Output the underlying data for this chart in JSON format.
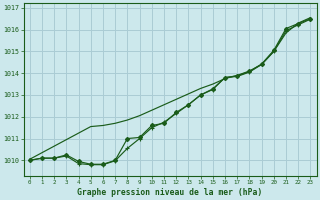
{
  "title": "Graphe pression niveau de la mer (hPa)",
  "bg_color": "#cce8ec",
  "grid_color": "#aaccd4",
  "line_color": "#1a5c1a",
  "marker_color": "#1a5c1a",
  "xlim": [
    -0.5,
    23.5
  ],
  "ylim": [
    1009.3,
    1017.2
  ],
  "xticks": [
    0,
    1,
    2,
    3,
    4,
    5,
    6,
    7,
    8,
    9,
    10,
    11,
    12,
    13,
    14,
    15,
    16,
    17,
    18,
    19,
    20,
    21,
    22,
    23
  ],
  "yticks": [
    1010,
    1011,
    1012,
    1013,
    1014,
    1015,
    1016,
    1017
  ],
  "hours": [
    0,
    1,
    2,
    3,
    4,
    5,
    6,
    7,
    8,
    9,
    10,
    11,
    12,
    13,
    14,
    15,
    16,
    17,
    18,
    19,
    20,
    21,
    22,
    23
  ],
  "line_top": [
    1010.05,
    1010.35,
    1010.65,
    1010.95,
    1011.25,
    1011.55,
    1011.6,
    1011.7,
    1011.85,
    1012.05,
    1012.3,
    1012.55,
    1012.8,
    1013.05,
    1013.3,
    1013.5,
    1013.75,
    1013.9,
    1014.1,
    1014.4,
    1015.0,
    1015.85,
    1016.3,
    1016.55
  ],
  "line_mid": [
    1010.0,
    1010.1,
    1010.1,
    1010.2,
    1009.85,
    1009.8,
    1009.8,
    1009.98,
    1010.55,
    1011.0,
    1011.5,
    1011.75,
    1012.15,
    1012.55,
    1013.0,
    1013.25,
    1013.8,
    1013.85,
    1014.05,
    1014.4,
    1015.0,
    1015.95,
    1016.22,
    1016.48
  ],
  "line_bot": [
    1010.0,
    1010.1,
    1010.1,
    1010.25,
    1009.95,
    1009.82,
    1009.82,
    1010.0,
    1011.0,
    1011.05,
    1011.6,
    1011.7,
    1012.2,
    1012.55,
    1013.0,
    1013.28,
    1013.8,
    1013.88,
    1014.08,
    1014.42,
    1015.05,
    1016.05,
    1016.28,
    1016.5
  ]
}
